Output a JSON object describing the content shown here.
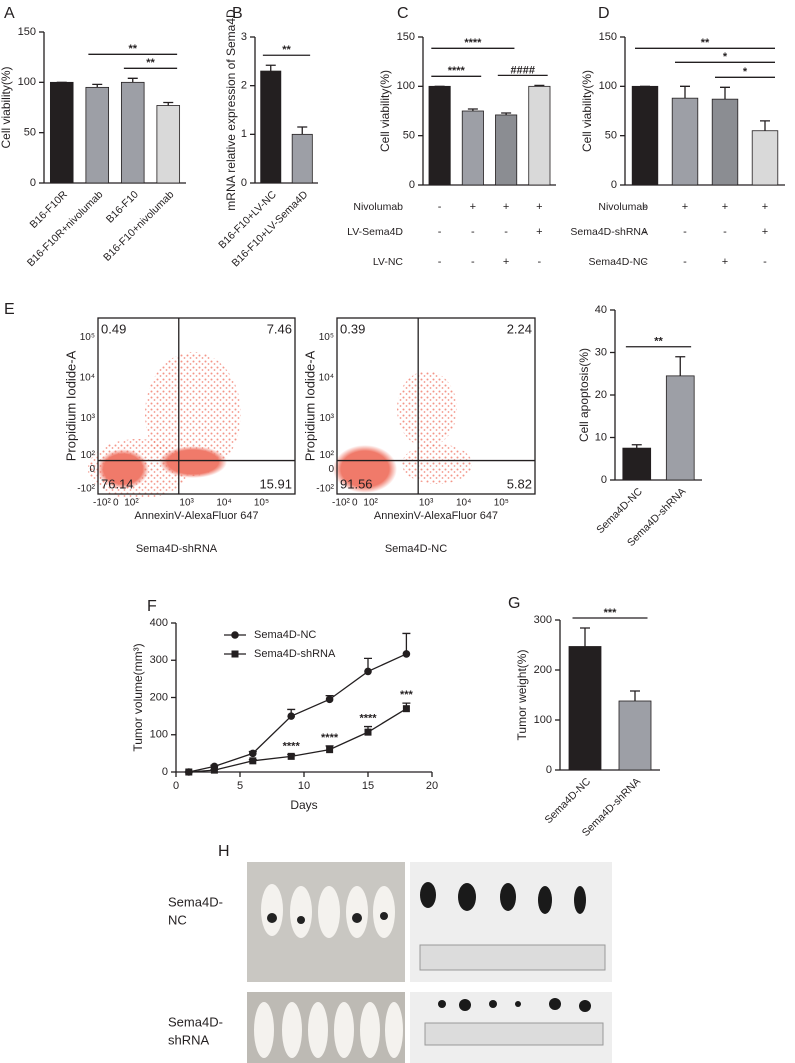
{
  "chart_data": [
    {
      "type": "bar",
      "label": "A",
      "ylabel": "Cell viability(%)",
      "categories": [
        "B16-F10R",
        "B16-F10R+nivolumab",
        "B16-F10",
        "B16-F10+nivolumab"
      ],
      "values": [
        100,
        95,
        100,
        77
      ],
      "errors": [
        0,
        3,
        4,
        3
      ],
      "colors": [
        "#231f20",
        "#9d9fa6",
        "#9d9fa6",
        "#d9d9d9"
      ],
      "ylim": [
        0,
        150
      ],
      "yticks": [
        0,
        50,
        100,
        150
      ],
      "brackets": [
        {
          "text": "**",
          "between": [
            2,
            3
          ]
        },
        {
          "text": "**",
          "between": [
            1,
            3
          ]
        }
      ]
    },
    {
      "type": "bar",
      "label": "B",
      "ylabel": "mRNA relative expression of Sema4D",
      "categories": [
        "B16-F10+LV-NC",
        "B16-F10+LV-Sema4D"
      ],
      "values": [
        2.3,
        1.0
      ],
      "errors": [
        0.12,
        0.15
      ],
      "colors": [
        "#231f20",
        "#9d9fa6"
      ],
      "ylim": [
        0,
        3
      ],
      "yticks": [
        0,
        1,
        2,
        3
      ],
      "brackets": [
        {
          "text": "**",
          "between": [
            0,
            1
          ]
        }
      ]
    },
    {
      "type": "bar",
      "label": "C",
      "ylabel": "Cell viability(%)",
      "values": [
        100,
        75,
        71,
        100
      ],
      "errors": [
        0,
        2,
        2,
        1
      ],
      "colors": [
        "#231f20",
        "#9d9fa6",
        "#8b8d92",
        "#d9d9d9"
      ],
      "ylim": [
        0,
        150
      ],
      "yticks": [
        0,
        50,
        100,
        150
      ],
      "brackets": [
        {
          "text": "####",
          "between": [
            2,
            3
          ]
        },
        {
          "text": "****",
          "between": [
            0,
            1
          ]
        },
        {
          "text": "****",
          "between": [
            0,
            2
          ]
        }
      ],
      "conditions": [
        {
          "name": "Nivolumab",
          "values": [
            "-",
            "+",
            "+",
            "+"
          ]
        },
        {
          "name": "LV-Sema4D",
          "values": [
            "-",
            "-",
            "-",
            "+"
          ]
        },
        {
          "name": "LV-NC",
          "values": [
            "-",
            "-",
            "+",
            "-"
          ]
        }
      ]
    },
    {
      "type": "bar",
      "label": "D",
      "ylabel": "Cell viability(%)",
      "values": [
        100,
        88,
        87,
        55
      ],
      "errors": [
        0,
        12,
        12,
        10
      ],
      "colors": [
        "#231f20",
        "#9d9fa6",
        "#8b8d92",
        "#d9d9d9"
      ],
      "ylim": [
        0,
        150
      ],
      "yticks": [
        0,
        50,
        100,
        150
      ],
      "brackets": [
        {
          "text": "*",
          "between": [
            2,
            3
          ]
        },
        {
          "text": "*",
          "between": [
            1,
            3
          ]
        },
        {
          "text": "**",
          "between": [
            0,
            3
          ]
        }
      ],
      "conditions": [
        {
          "name": "Nivolumab",
          "values": [
            "-",
            "+",
            "+",
            "+"
          ]
        },
        {
          "name": "Sema4D-shRNA",
          "values": [
            "-",
            "-",
            "-",
            "+"
          ]
        },
        {
          "name": "Sema4D-NC",
          "values": [
            "-",
            "-",
            "+",
            "-"
          ]
        }
      ]
    },
    {
      "type": "flow",
      "label": "E",
      "xlabel": "AnnexinV-AlexaFluor 647",
      "ylabel": "Propidium Iodide-A",
      "caption": "Sema4D-shRNA",
      "quadrants": [
        0.49,
        7.46,
        76.14,
        15.91
      ],
      "xticklabels": [
        "-10²",
        "0",
        "10²",
        "10³",
        "10⁴",
        "10⁵"
      ],
      "yticklabels": [
        "-10²",
        "0",
        "10²",
        "10³",
        "10⁴",
        "10⁵"
      ]
    },
    {
      "type": "flow",
      "xlabel": "AnnexinV-AlexaFluor 647",
      "ylabel": "Propidium Iodide-A",
      "caption": "Sema4D-NC",
      "quadrants": [
        0.39,
        2.24,
        91.56,
        5.82
      ],
      "xticklabels": [
        "-10²",
        "0",
        "10²",
        "10³",
        "10⁴",
        "10⁵"
      ],
      "yticklabels": [
        "-10²",
        "0",
        "10²",
        "10³",
        "10⁴",
        "10⁵"
      ]
    },
    {
      "type": "bar",
      "ylabel": "Cell apoptosis(%)",
      "categories": [
        "Sema4D-NC",
        "Sema4D-shRNA"
      ],
      "values": [
        7.5,
        24.5
      ],
      "errors": [
        0.8,
        4.5
      ],
      "colors": [
        "#231f20",
        "#9d9fa6"
      ],
      "ylim": [
        0,
        40
      ],
      "yticks": [
        0,
        10,
        20,
        30,
        40
      ],
      "brackets": [
        {
          "text": "**",
          "between": [
            0,
            1
          ]
        }
      ]
    },
    {
      "type": "line",
      "label": "F",
      "xlabel": "Days",
      "ylabel": "Tumor volume(mm³)",
      "x": [
        1,
        3,
        6,
        9,
        12,
        15,
        18
      ],
      "series": [
        {
          "name": "Sema4D-NC",
          "color": "#231f20",
          "marker": "circle",
          "values": [
            0,
            15,
            50,
            150,
            195,
            270,
            317
          ],
          "errors": [
            0,
            3,
            5,
            18,
            10,
            35,
            55
          ]
        },
        {
          "name": "Sema4D-shRNA",
          "color": "#231f20",
          "marker": "square",
          "values": [
            0,
            5,
            30,
            42,
            60,
            107,
            170
          ],
          "errors": [
            0,
            2,
            3,
            5,
            10,
            15,
            15
          ]
        }
      ],
      "annotations": [
        {
          "text": "****",
          "series": 1,
          "at": 3
        },
        {
          "text": "****",
          "series": 1,
          "at": 4
        },
        {
          "text": "****",
          "series": 1,
          "at": 5
        },
        {
          "text": "***",
          "series": 1,
          "at": 6
        }
      ],
      "xlim": [
        0,
        20
      ],
      "xticks": [
        0,
        5,
        10,
        15,
        20
      ],
      "ylim": [
        0,
        400
      ],
      "yticks": [
        0,
        100,
        200,
        300,
        400
      ]
    },
    {
      "type": "bar",
      "label": "G",
      "ylabel": "Tumor weight(%)",
      "categories": [
        "Sema4D-NC",
        "Sema4D-shRNA"
      ],
      "values": [
        247,
        138
      ],
      "errors": [
        37,
        20
      ],
      "colors": [
        "#231f20",
        "#9d9fa6"
      ],
      "ylim": [
        0,
        300
      ],
      "yticks": [
        0,
        100,
        200,
        300
      ],
      "brackets": [
        {
          "text": "***",
          "between": [
            0,
            1
          ]
        }
      ]
    }
  ],
  "photo_panel": {
    "label": "H",
    "rows": [
      [
        "Sema4D-",
        "NC"
      ],
      [
        "Sema4D-",
        "shRNA"
      ]
    ]
  }
}
